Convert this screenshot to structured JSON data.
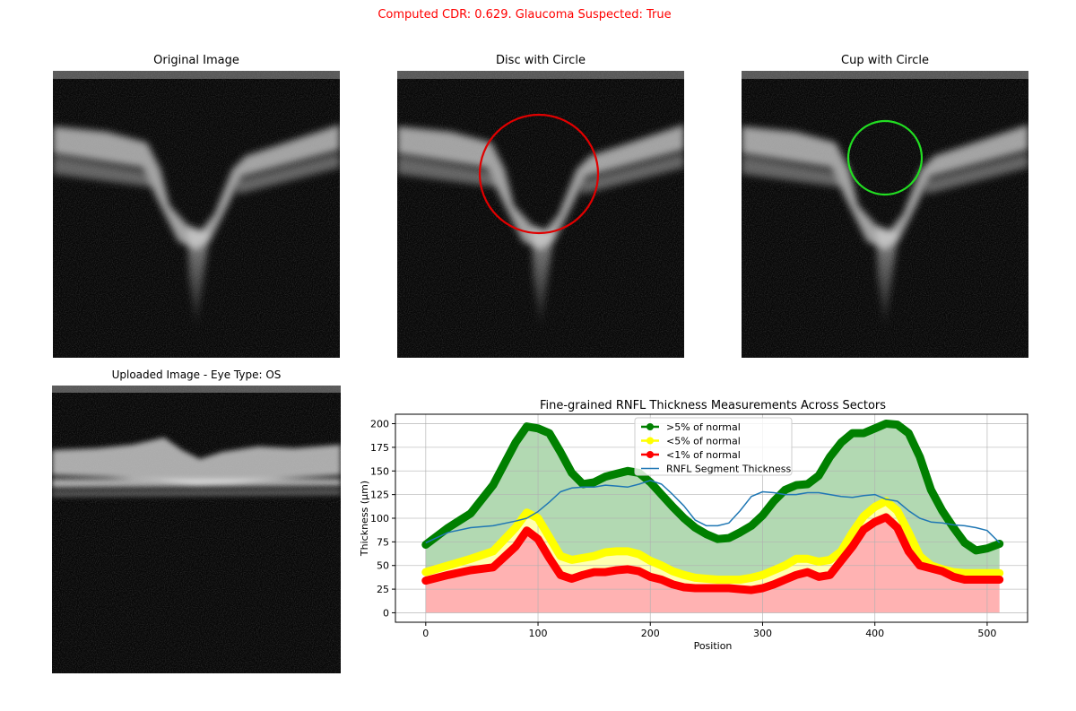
{
  "header": {
    "result_text": "Computed CDR: 0.629. Glaucoma Suspected: True"
  },
  "panels": {
    "original": {
      "title": "Original Image"
    },
    "disc": {
      "title": "Disc with Circle"
    },
    "cup": {
      "title": "Cup with Circle"
    },
    "uploaded": {
      "title": "Uploaded Image - Eye Type: OS"
    }
  },
  "colors": {
    "title_alert": "#ff0000",
    "disc_circle": "#e00000",
    "cup_circle": "#22dd22",
    "green": "#008000",
    "yellow": "#ffff00",
    "red": "#ff0000",
    "rnfl": "#1f77b4"
  },
  "chart_data": {
    "type": "line",
    "title": "Fine-grained RNFL Thickness Measurements Across Sectors",
    "xlabel": "Position",
    "ylabel": "Thickness (μm)",
    "xlim": [
      -27,
      536
    ],
    "ylim": [
      -10,
      210
    ],
    "x_ticks": [
      0,
      100,
      200,
      300,
      400,
      500
    ],
    "y_ticks": [
      0,
      25,
      50,
      75,
      100,
      125,
      150,
      175,
      200
    ],
    "grid": true,
    "legend_position": "upper center",
    "x": [
      0,
      20,
      40,
      60,
      80,
      90,
      100,
      110,
      120,
      130,
      140,
      150,
      160,
      170,
      180,
      190,
      200,
      210,
      220,
      230,
      240,
      250,
      260,
      270,
      280,
      290,
      300,
      310,
      320,
      330,
      340,
      350,
      360,
      370,
      380,
      390,
      400,
      410,
      420,
      430,
      440,
      450,
      460,
      470,
      480,
      490,
      500,
      511
    ],
    "series": [
      {
        "name": ">5% of normal",
        "color": "#008000",
        "marker": "o",
        "values": [
          72,
          90,
          105,
          135,
          180,
          197,
          195,
          190,
          170,
          148,
          136,
          138,
          144,
          147,
          150,
          148,
          138,
          125,
          112,
          100,
          90,
          83,
          78,
          79,
          85,
          92,
          103,
          118,
          130,
          135,
          136,
          145,
          165,
          180,
          190,
          190,
          195,
          200,
          199,
          190,
          165,
          130,
          108,
          90,
          74,
          66,
          68,
          73
        ]
      },
      {
        "name": "<5% of normal",
        "color": "#ffff00",
        "marker": "o",
        "values": [
          43,
          50,
          57,
          65,
          90,
          106,
          100,
          80,
          60,
          56,
          58,
          60,
          64,
          65,
          65,
          62,
          55,
          50,
          44,
          40,
          37,
          36,
          35,
          35,
          35,
          37,
          40,
          45,
          50,
          57,
          57,
          54,
          56,
          65,
          85,
          102,
          112,
          118,
          108,
          85,
          60,
          50,
          46,
          43,
          42,
          42,
          42,
          42
        ]
      },
      {
        "name": "<1% of normal",
        "color": "#ff0000",
        "marker": "o",
        "values": [
          34,
          40,
          45,
          48,
          70,
          87,
          78,
          58,
          40,
          36,
          40,
          43,
          43,
          45,
          46,
          44,
          38,
          35,
          30,
          27,
          26,
          26,
          26,
          26,
          25,
          24,
          26,
          30,
          35,
          40,
          43,
          38,
          40,
          55,
          70,
          88,
          96,
          101,
          90,
          65,
          50,
          47,
          44,
          38,
          35,
          35,
          35,
          35
        ]
      },
      {
        "name": "RNFL Segment Thickness",
        "color": "#1f77b4",
        "marker": "",
        "values": [
          74,
          85,
          90,
          92,
          97,
          100,
          107,
          117,
          128,
          132,
          133,
          133,
          135,
          134,
          133,
          136,
          140,
          136,
          125,
          113,
          98,
          92,
          92,
          95,
          108,
          123,
          128,
          127,
          125,
          125,
          127,
          127,
          125,
          123,
          122,
          124,
          125,
          120,
          118,
          108,
          100,
          96,
          95,
          93,
          92,
          90,
          87,
          74
        ]
      }
    ]
  }
}
